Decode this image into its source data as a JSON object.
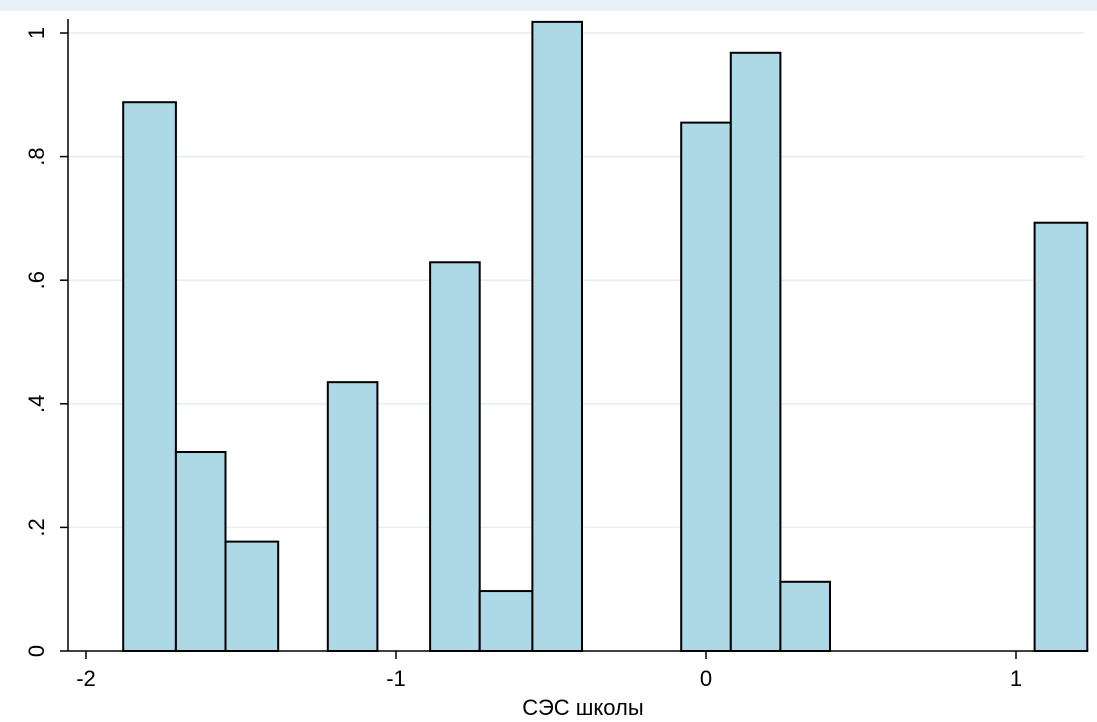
{
  "chart_data": {
    "type": "bar",
    "subtype": "histogram",
    "xlabel": "СЭС школы",
    "ylabel": "",
    "xlim": [
      -2.1,
      1.23
    ],
    "ylim": [
      0,
      1.02
    ],
    "x_ticks": [
      {
        "value": -2,
        "label": "-2"
      },
      {
        "value": -1,
        "label": "-1"
      },
      {
        "value": 0,
        "label": "0"
      },
      {
        "value": 1,
        "label": "1"
      }
    ],
    "y_ticks": [
      {
        "value": 0,
        "label": "0"
      },
      {
        "value": 0.2,
        "label": ".2"
      },
      {
        "value": 0.4,
        "label": ".4"
      },
      {
        "value": 0.6,
        "label": ".6"
      },
      {
        "value": 0.8,
        "label": ".8"
      },
      {
        "value": 1,
        "label": "1"
      }
    ],
    "grid": "horizontal",
    "bins": [
      {
        "x0": -1.88,
        "x1": -1.71,
        "value": 0.888
      },
      {
        "x0": -1.71,
        "x1": -1.55,
        "value": 0.322
      },
      {
        "x0": -1.55,
        "x1": -1.38,
        "value": 0.177
      },
      {
        "x0": -1.22,
        "x1": -1.06,
        "value": 0.435
      },
      {
        "x0": -0.89,
        "x1": -0.73,
        "value": 0.629
      },
      {
        "x0": -0.73,
        "x1": -0.56,
        "value": 0.097
      },
      {
        "x0": -0.56,
        "x1": -0.4,
        "value": 1.018
      },
      {
        "x0": -0.08,
        "x1": 0.08,
        "value": 0.855
      },
      {
        "x0": 0.08,
        "x1": 0.24,
        "value": 0.968
      },
      {
        "x0": 0.24,
        "x1": 0.4,
        "value": 0.112
      },
      {
        "x0": 1.06,
        "x1": 1.23,
        "value": 0.693
      }
    ],
    "colors": {
      "bar_fill": "#add8e6",
      "bar_stroke": "#000000",
      "grid": "#e3eef2",
      "axis": "#000000",
      "plot_background": "#ffffff",
      "top_band": "#e8f1f5"
    }
  }
}
